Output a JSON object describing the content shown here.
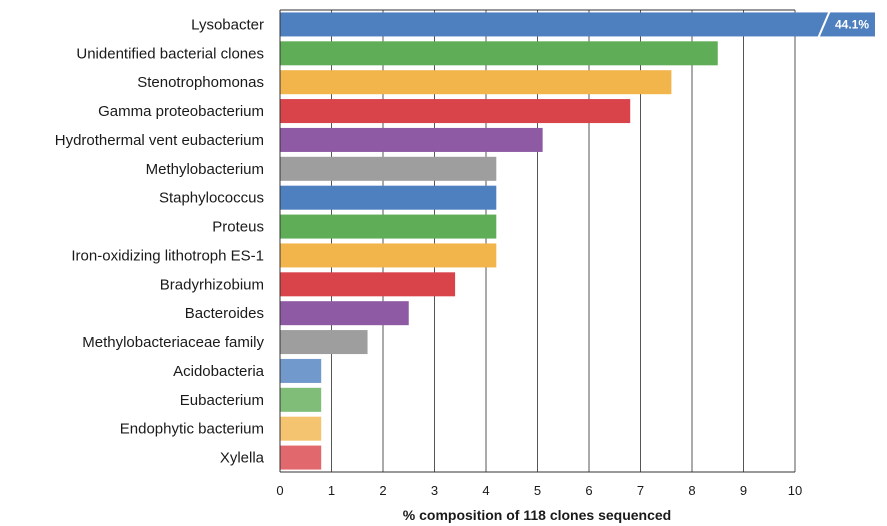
{
  "chart_data": {
    "type": "bar",
    "orientation": "horizontal",
    "categories": [
      "Lysobacter",
      "Unidentified bacterial clones",
      "Stenotrophomonas",
      "Gamma proteobacterium",
      "Hydrothermal vent eubacterium",
      "Methylobacterium",
      "Staphylococcus",
      "Proteus",
      "Iron-oxidizing lithotroph ES-1",
      "Bradyrhizobium",
      "Bacteroides",
      "Methylobacteriaceae family",
      "Acidobacteria",
      "Eubacterium",
      "Endophytic bacterium",
      "Xylella"
    ],
    "values": [
      44.1,
      8.5,
      7.6,
      6.8,
      5.1,
      4.2,
      4.2,
      4.2,
      4.2,
      3.4,
      2.5,
      1.7,
      0.8,
      0.8,
      0.8,
      0.8
    ],
    "colors": [
      "#4e7fbf",
      "#5fad56",
      "#f2b54c",
      "#d9434a",
      "#8e5aa3",
      "#9e9e9e",
      "#4e7fbf",
      "#5fad56",
      "#f2b54c",
      "#d9434a",
      "#8e5aa3",
      "#9e9e9e",
      "#4e7fbf",
      "#5fad56",
      "#f2b54c",
      "#d9434a"
    ],
    "faded_last_n": 4,
    "xlabel": "% composition of 118 clones sequenced",
    "ylabel": "",
    "title": "",
    "xlim": [
      0,
      10
    ],
    "xticks": [
      0,
      1,
      2,
      3,
      4,
      5,
      6,
      7,
      8,
      9,
      10
    ],
    "grid": "vertical",
    "data_labels": [
      {
        "category": "Lysobacter",
        "text": "44.1%"
      }
    ],
    "axis_break": "Lysobacter bar truncated at right edge"
  }
}
